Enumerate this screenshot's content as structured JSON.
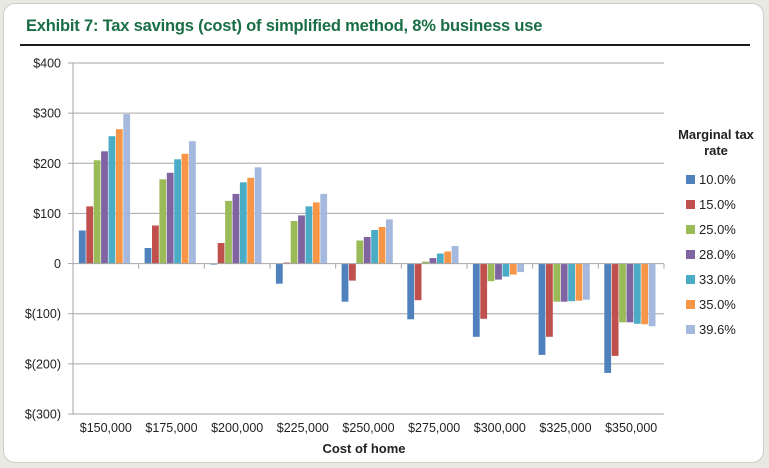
{
  "chart_data": {
    "type": "bar",
    "title": "Exhibit 7: Tax savings (cost) of simplified method, 8% business use",
    "xlabel": "Cost of home",
    "ylabel": "",
    "ylim": [
      -300,
      400
    ],
    "yticks": [
      400,
      300,
      200,
      100,
      0,
      -100,
      -200,
      -300
    ],
    "ytick_labels": [
      "$400",
      "$300",
      "$200",
      "$100",
      "0",
      "$(100)",
      "$(200)",
      "$(300)"
    ],
    "grid": true,
    "legend_title": "Marginal tax rate",
    "legend_position": "right",
    "categories": [
      "$150,000",
      "$175,000",
      "$200,000",
      "$225,000",
      "$250,000",
      "$275,000",
      "$300,000",
      "$325,000",
      "$350,000"
    ],
    "series": [
      {
        "name": "10.0%",
        "color": "#4f81bd",
        "values": [
          66,
          31,
          -2,
          -40,
          -76,
          -111,
          -146,
          -182,
          -218
        ]
      },
      {
        "name": "15.0%",
        "color": "#c0504d",
        "values": [
          114,
          76,
          41,
          2,
          -34,
          -73,
          -110,
          -146,
          -184
        ]
      },
      {
        "name": "25.0%",
        "color": "#9bbb59",
        "values": [
          206,
          168,
          125,
          85,
          46,
          4,
          -35,
          -76,
          -117
        ]
      },
      {
        "name": "28.0%",
        "color": "#8064a2",
        "values": [
          224,
          181,
          139,
          96,
          53,
          11,
          -32,
          -76,
          -117
        ]
      },
      {
        "name": "33.0%",
        "color": "#4bacc6",
        "values": [
          254,
          208,
          162,
          114,
          67,
          20,
          -26,
          -75,
          -120
        ]
      },
      {
        "name": "35.0%",
        "color": "#f79646",
        "values": [
          268,
          219,
          171,
          122,
          73,
          24,
          -22,
          -74,
          -121
        ]
      },
      {
        "name": "39.6%",
        "color": "#a5b9de",
        "values": [
          298,
          244,
          192,
          139,
          88,
          35,
          -17,
          -72,
          -125
        ]
      }
    ]
  }
}
